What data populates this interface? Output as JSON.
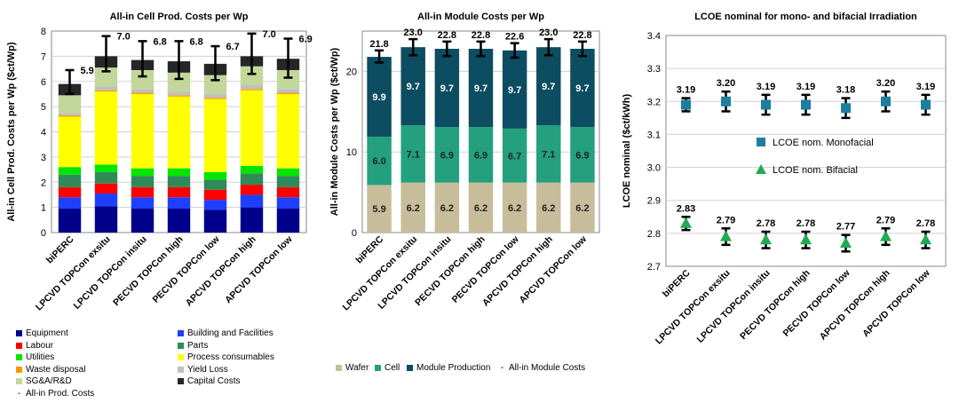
{
  "chart_data": [
    {
      "type": "bar",
      "title": "All-in Cell Prod. Costs per Wp",
      "xlabel": "",
      "ylabel": "All-in Cell Prod. Costs per Wp ($ct/Wp)",
      "ylim": [
        0,
        8
      ],
      "yticks": [
        "0",
        "1",
        "2",
        "3",
        "4",
        "5",
        "6",
        "7",
        "8"
      ],
      "grid": true,
      "legend_position": "bottom",
      "categories": [
        "biPERC",
        "LPCVD TOPCon exsitu",
        "LPCVD TOPCon insitu",
        "PECVD TOPCon high",
        "PECVD TOPCon low",
        "APCVD TOPCon high",
        "APCVD TOPCon low"
      ],
      "series": [
        {
          "name": "Equipment",
          "color": "#00008b",
          "values": [
            0.95,
            1.05,
            0.95,
            0.95,
            0.9,
            1.0,
            0.95
          ]
        },
        {
          "name": "Building and Facilities",
          "color": "#1f3fff",
          "values": [
            0.45,
            0.5,
            0.45,
            0.45,
            0.4,
            0.5,
            0.45
          ]
        },
        {
          "name": "Labour",
          "color": "#ff0000",
          "values": [
            0.4,
            0.4,
            0.4,
            0.4,
            0.4,
            0.4,
            0.4
          ]
        },
        {
          "name": "Parts",
          "color": "#2e8b57",
          "values": [
            0.5,
            0.45,
            0.45,
            0.45,
            0.4,
            0.45,
            0.45
          ]
        },
        {
          "name": "Utilities",
          "color": "#00e600",
          "values": [
            0.3,
            0.3,
            0.3,
            0.3,
            0.3,
            0.3,
            0.3
          ]
        },
        {
          "name": "Process consumables",
          "color": "#ffff00",
          "values": [
            2.0,
            2.9,
            2.95,
            2.85,
            2.9,
            3.0,
            2.95
          ]
        },
        {
          "name": "Waste disposal",
          "color": "#ff9900",
          "values": [
            0.05,
            0.05,
            0.05,
            0.05,
            0.05,
            0.05,
            0.05
          ]
        },
        {
          "name": "Yield Loss",
          "color": "#c0c0c0",
          "values": [
            0.1,
            0.15,
            0.15,
            0.15,
            0.15,
            0.15,
            0.15
          ]
        },
        {
          "name": "SG&A/R&D",
          "color": "#c4d79b",
          "values": [
            0.7,
            0.75,
            0.75,
            0.75,
            0.75,
            0.75,
            0.75
          ]
        },
        {
          "name": "Capital Costs",
          "color": "#262626",
          "values": [
            0.45,
            0.45,
            0.4,
            0.45,
            0.45,
            0.4,
            0.45
          ]
        }
      ],
      "totals": {
        "name": "All-in Prod. Costs",
        "values": [
          5.9,
          7.0,
          6.8,
          6.8,
          6.7,
          7.0,
          6.9
        ],
        "labels": [
          "5.9",
          "7.0",
          "6.8",
          "6.8",
          "6.7",
          "7.0",
          "6.9"
        ],
        "err_high": [
          6.45,
          7.8,
          7.6,
          7.6,
          7.4,
          7.9,
          7.7
        ],
        "err_low": [
          5.5,
          6.4,
          6.2,
          6.1,
          6.05,
          6.3,
          6.15
        ]
      }
    },
    {
      "type": "bar",
      "title": "All-in Module Costs per Wp",
      "xlabel": "",
      "ylabel": "All-in Module Costs per Wp ($ct/Wp)",
      "ylim": [
        0,
        25
      ],
      "yticks": [
        "0",
        "10",
        "20"
      ],
      "grid": true,
      "legend_position": "bottom",
      "categories": [
        "biPERC",
        "LPCVD TOPCon exsitu",
        "LPCVD TOPCon insitu",
        "PECVD TOPCon high",
        "PECVD TOPCon low",
        "APCVD TOPCon high",
        "APCVD TOPCon low"
      ],
      "series": [
        {
          "name": "Wafer",
          "color": "#c8bd9b",
          "values": [
            5.9,
            6.2,
            6.2,
            6.2,
            6.2,
            6.2,
            6.2
          ],
          "labels": [
            "5.9",
            "6.2",
            "6.2",
            "6.2",
            "6.2",
            "6.2",
            "6.2"
          ]
        },
        {
          "name": "Cell",
          "color": "#24a07e",
          "values": [
            6.0,
            7.1,
            6.9,
            6.9,
            6.7,
            7.1,
            6.9
          ],
          "labels": [
            "6.0",
            "7.1",
            "6.9",
            "6.9",
            "6.7",
            "7.1",
            "6.9"
          ]
        },
        {
          "name": "Module Production",
          "color": "#0c4d61",
          "values": [
            9.9,
            9.7,
            9.7,
            9.7,
            9.7,
            9.7,
            9.7
          ],
          "labels": [
            "9.9",
            "9.7",
            "9.7",
            "9.7",
            "9.7",
            "9.7",
            "9.7"
          ]
        }
      ],
      "totals": {
        "name": "All-in Module Costs",
        "values": [
          21.8,
          23.0,
          22.8,
          22.8,
          22.6,
          23.0,
          22.8
        ],
        "labels": [
          "21.8",
          "23.0",
          "22.8",
          "22.8",
          "22.6",
          "23.0",
          "22.8"
        ],
        "err_high": [
          22.6,
          24.0,
          23.7,
          23.7,
          23.5,
          24.0,
          23.7
        ],
        "err_low": [
          21.1,
          22.0,
          21.9,
          21.9,
          21.7,
          22.0,
          21.9
        ]
      }
    },
    {
      "type": "scatter",
      "title": "LCOE nominal for mono- and bifacial Irradiation",
      "xlabel": "",
      "ylabel": "LCOE nominal ($ct/kWh)",
      "ylim": [
        2.7,
        3.4
      ],
      "yticks": [
        "2.7",
        "2.8",
        "2.9",
        "3.0",
        "3.1",
        "3.2",
        "3.3",
        "3.4"
      ],
      "grid": true,
      "legend_position": "center",
      "categories": [
        "biPERC",
        "LPCVD TOPCon exsitu",
        "LPCVD TOPCon insitu",
        "PECVD TOPCon high",
        "PECVD TOPCon low",
        "APCVD TOPCon high",
        "APCVD TOPCon low"
      ],
      "series": [
        {
          "name": "LCOE nom. Monofacial",
          "marker": "square",
          "color": "#1a7fa0",
          "values": [
            3.19,
            3.2,
            3.19,
            3.19,
            3.18,
            3.2,
            3.19
          ],
          "labels": [
            "3.19",
            "3.20",
            "3.19",
            "3.19",
            "3.18",
            "3.20",
            "3.19"
          ],
          "err": [
            0.02,
            0.03,
            0.03,
            0.03,
            0.03,
            0.03,
            0.03
          ]
        },
        {
          "name": "LCOE nom. Bifacial",
          "marker": "triangle",
          "color": "#1faa50",
          "values": [
            2.83,
            2.79,
            2.78,
            2.78,
            2.77,
            2.79,
            2.78
          ],
          "labels": [
            "2.83",
            "2.79",
            "2.78",
            "2.78",
            "2.77",
            "2.79",
            "2.78"
          ],
          "err": [
            0.02,
            0.025,
            0.025,
            0.025,
            0.025,
            0.025,
            0.025
          ]
        }
      ]
    }
  ]
}
